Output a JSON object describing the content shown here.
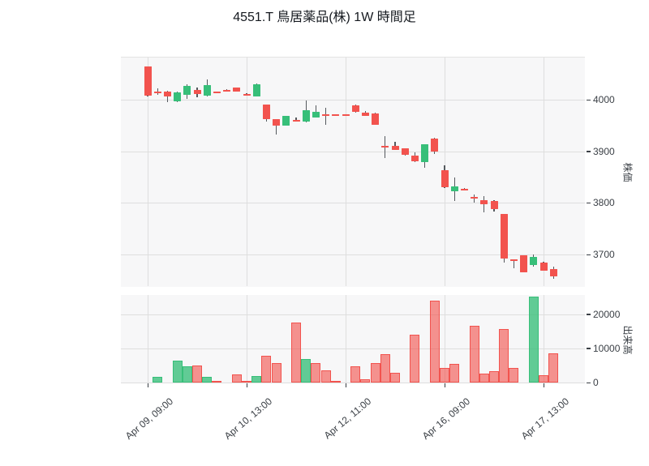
{
  "title": "4551.T 鳥居薬品(株) 1W 時間足",
  "colors": {
    "up": "#37bf79",
    "down": "#f2534e",
    "wick": "#55595e",
    "grid": "#dedede",
    "panel_bg": "#f7f7f8",
    "up_volume_fill": "rgba(55,191,121,0.78)",
    "down_volume_fill": "rgba(242,83,78,0.62)",
    "tick_text": "#3a3f45",
    "title_text": "#15191f"
  },
  "price_axis": {
    "title": "株価",
    "ticks": [
      4000,
      3900,
      3800,
      3700
    ],
    "range": [
      3645,
      4085
    ]
  },
  "volume_axis": {
    "title": "出来高",
    "ticks": [
      20000,
      10000,
      0
    ],
    "range": [
      0,
      25700
    ]
  },
  "x_axis": {
    "tick_labels": [
      "Apr 09, 09:00",
      "Apr 10, 13:00",
      "Apr 12, 11:00",
      "Apr 16, 09:00",
      "Apr 17, 13:00"
    ],
    "tick_indices": [
      0,
      10,
      20,
      30,
      40
    ]
  },
  "chart_data": {
    "type": "candlestick_with_volume",
    "interval": "1W hourly",
    "symbol": "4551.T",
    "candles_ohlc": [
      [
        4064,
        4065,
        4007,
        4008
      ],
      [
        4016,
        4022,
        4009,
        4013
      ],
      [
        4016,
        4017,
        3995,
        4007
      ],
      [
        3997,
        4015,
        3996,
        4014
      ],
      [
        4010,
        4030,
        4002,
        4026
      ],
      [
        4019,
        4024,
        4005,
        4011
      ],
      [
        4008,
        4040,
        4007,
        4029
      ],
      [
        4015,
        4016,
        4012,
        4013
      ],
      [
        4019,
        4020,
        4016,
        4017
      ],
      [
        4023,
        4024,
        4015,
        4016
      ],
      [
        4011,
        4012,
        4008,
        4009
      ],
      [
        4007,
        4031,
        4006,
        4030
      ],
      [
        3990,
        3991,
        3957,
        3962
      ],
      [
        3962,
        3963,
        3932,
        3950
      ],
      [
        3950,
        3969,
        3949,
        3968
      ],
      [
        3961,
        3966,
        3958,
        3959
      ],
      [
        3957,
        3998,
        3956,
        3980
      ],
      [
        3966,
        3989,
        3965,
        3976
      ],
      [
        3971,
        3984,
        3952,
        3969
      ],
      [
        3971,
        3972,
        3968,
        3969
      ],
      [
        3971,
        3972,
        3968,
        3969
      ],
      [
        3989,
        3990,
        3975,
        3976
      ],
      [
        3975,
        3978,
        3968,
        3969
      ],
      [
        3974,
        3975,
        3951,
        3952
      ],
      [
        3910,
        3929,
        3887,
        3908
      ],
      [
        3911,
        3918,
        3902,
        3903
      ],
      [
        3905,
        3906,
        3892,
        3893
      ],
      [
        3892,
        3898,
        3879,
        3880
      ],
      [
        3879,
        3914,
        3868,
        3913
      ],
      [
        3925,
        3926,
        3895,
        3900
      ],
      [
        3863,
        3873,
        3829,
        3831
      ],
      [
        3822,
        3850,
        3803,
        3832
      ],
      [
        3828,
        3829,
        3825,
        3826
      ],
      [
        3811,
        3817,
        3801,
        3809
      ],
      [
        3805,
        3813,
        3782,
        3797
      ],
      [
        3804,
        3805,
        3784,
        3788
      ],
      [
        3778,
        3779,
        3685,
        3692
      ],
      [
        3690,
        3691,
        3673,
        3689
      ],
      [
        3698,
        3699,
        3665,
        3666
      ],
      [
        3679,
        3700,
        3677,
        3695
      ],
      [
        3685,
        3686,
        3668,
        3669
      ],
      [
        3671,
        3677,
        3653,
        3658
      ]
    ],
    "volumes": [
      [
        0,
        "down"
      ],
      [
        1700,
        "up"
      ],
      [
        0,
        "down"
      ],
      [
        6500,
        "up"
      ],
      [
        4700,
        "up"
      ],
      [
        5000,
        "down"
      ],
      [
        1600,
        "up"
      ],
      [
        400,
        "down"
      ],
      [
        0,
        "down"
      ],
      [
        2300,
        "down"
      ],
      [
        550,
        "down"
      ],
      [
        1900,
        "up"
      ],
      [
        7900,
        "down"
      ],
      [
        5700,
        "down"
      ],
      [
        0,
        "down"
      ],
      [
        17600,
        "down"
      ],
      [
        6800,
        "up"
      ],
      [
        5600,
        "down"
      ],
      [
        3600,
        "down"
      ],
      [
        550,
        "down"
      ],
      [
        0,
        "down"
      ],
      [
        4800,
        "down"
      ],
      [
        1000,
        "down"
      ],
      [
        5800,
        "down"
      ],
      [
        8250,
        "down"
      ],
      [
        2800,
        "down"
      ],
      [
        0,
        "down"
      ],
      [
        14000,
        "down"
      ],
      [
        0,
        "down"
      ],
      [
        24000,
        "down"
      ],
      [
        4300,
        "down"
      ],
      [
        5500,
        "down"
      ],
      [
        0,
        "down"
      ],
      [
        16600,
        "down"
      ],
      [
        2700,
        "down"
      ],
      [
        3350,
        "down"
      ],
      [
        15550,
        "down"
      ],
      [
        4300,
        "down"
      ],
      [
        0,
        "down"
      ],
      [
        25100,
        "up"
      ],
      [
        2150,
        "down"
      ],
      [
        8650,
        "down"
      ]
    ]
  }
}
